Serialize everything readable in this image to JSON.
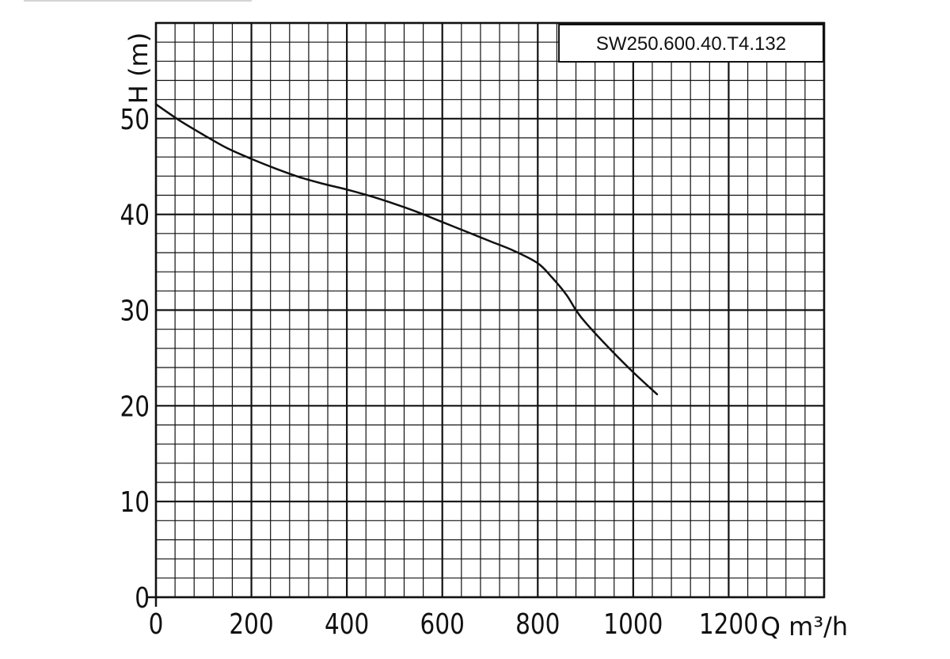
{
  "chart_data": {
    "type": "line",
    "title": "SW250.600.40.T4.132",
    "xlabel": "Q m³/h",
    "ylabel": "H (m)",
    "xlim": [
      0,
      1400
    ],
    "ylim": [
      0,
      60
    ],
    "x_ticks": [
      "0",
      "200",
      "400",
      "600",
      "800",
      "1000",
      "1200"
    ],
    "y_ticks": [
      "0",
      "10",
      "20",
      "30",
      "40",
      "50"
    ],
    "grid": true,
    "legend_position": "top-right",
    "series": [
      {
        "name": "SW250.600.40.T4.132",
        "x": [
          0,
          50,
          100,
          150,
          200,
          250,
          300,
          350,
          400,
          450,
          500,
          550,
          600,
          650,
          700,
          750,
          800,
          830,
          860,
          880,
          900,
          950,
          1000,
          1050
        ],
        "y": [
          51.5,
          49.8,
          48.3,
          46.9,
          45.8,
          44.8,
          43.9,
          43.2,
          42.6,
          41.9,
          41.1,
          40.2,
          39.2,
          38.2,
          37.2,
          36.2,
          34.9,
          33.4,
          31.6,
          30.0,
          28.7,
          26.0,
          23.5,
          21.2
        ],
        "color": "#111111"
      }
    ]
  }
}
